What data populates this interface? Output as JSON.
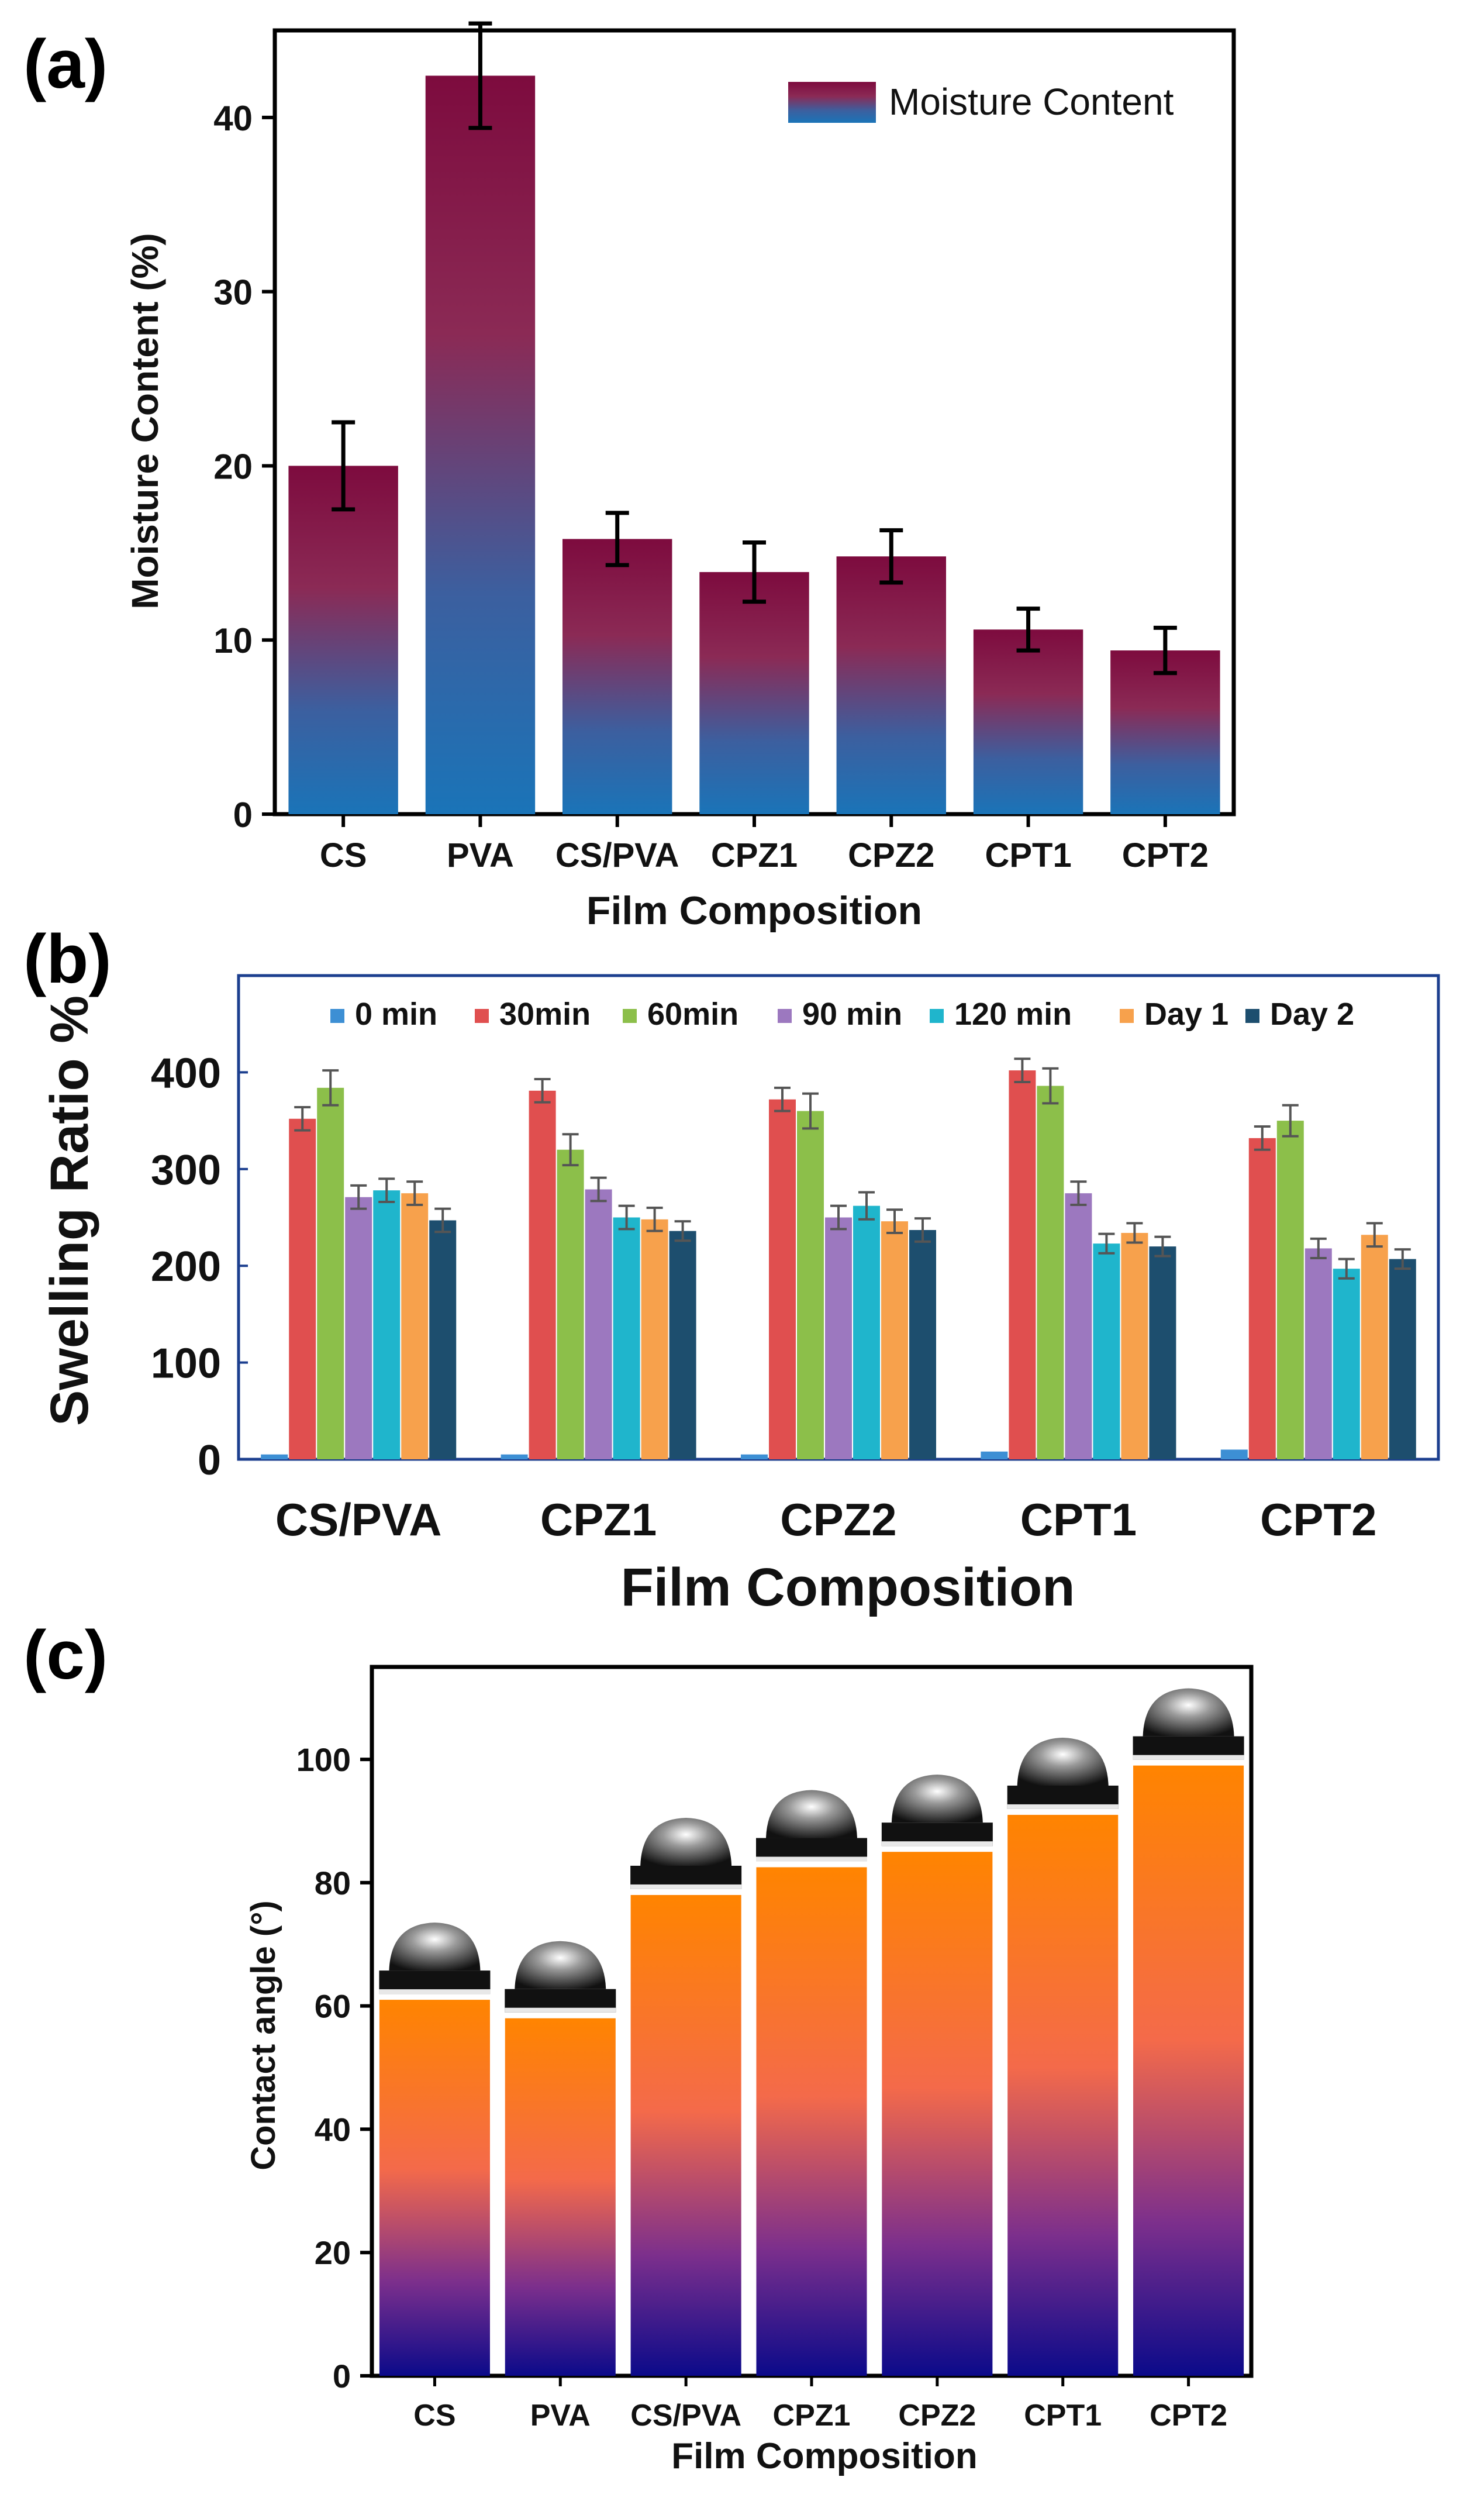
{
  "chart_data": [
    {
      "panel": "(a)",
      "type": "bar",
      "categories": [
        "CS",
        "PVA",
        "CS/PVA",
        "CPZ1",
        "CPZ2",
        "CPT1",
        "CPT2"
      ],
      "series": [
        {
          "name": "Moisture Content",
          "values": [
            20.0,
            42.4,
            15.8,
            13.9,
            14.8,
            10.6,
            9.4
          ],
          "errors": [
            2.5,
            3.0,
            1.5,
            1.7,
            1.5,
            1.2,
            1.3
          ]
        }
      ],
      "xlabel": "Film Composition",
      "ylabel": "Moisture Content (%)",
      "ylim": [
        0,
        45
      ],
      "yticks": [
        0,
        10,
        20,
        30,
        40
      ],
      "legend": "top-right",
      "grid": false,
      "colors": {
        "bar_top": "#7d0b3e",
        "bar_bottom": "#1a74b8"
      }
    },
    {
      "panel": "(b)",
      "type": "bar",
      "categories": [
        "CS/PVA",
        "CPZ1",
        "CPZ2",
        "CPT1",
        "CPT2"
      ],
      "series": [
        {
          "name": "0 min",
          "color": "#3d8fd4",
          "values": [
            5,
            5,
            5,
            8,
            10
          ],
          "errors": [
            0,
            0,
            0,
            0,
            0
          ]
        },
        {
          "name": "30min",
          "color": "#e04f4f",
          "values": [
            352,
            381,
            372,
            402,
            332
          ],
          "errors": [
            12,
            12,
            12,
            12,
            12
          ]
        },
        {
          "name": "60min",
          "color": "#8cbf4a",
          "values": [
            384,
            320,
            360,
            386,
            350
          ],
          "errors": [
            18,
            16,
            18,
            18,
            16
          ]
        },
        {
          "name": "90 min",
          "color": "#9c78bf",
          "values": [
            271,
            279,
            250,
            275,
            218
          ],
          "errors": [
            12,
            12,
            12,
            12,
            10
          ]
        },
        {
          "name": "120 min",
          "color": "#1fb5cc",
          "values": [
            278,
            250,
            262,
            223,
            197
          ],
          "errors": [
            12,
            12,
            14,
            10,
            10
          ]
        },
        {
          "name": "Day 1",
          "color": "#f7a14c",
          "values": [
            275,
            248,
            246,
            234,
            232
          ],
          "errors": [
            12,
            12,
            12,
            10,
            12
          ]
        },
        {
          "name": "Day 2",
          "color": "#1d4e6e",
          "values": [
            247,
            236,
            237,
            220,
            207
          ],
          "errors": [
            12,
            10,
            12,
            10,
            10
          ]
        }
      ],
      "xlabel": "Film Composition",
      "ylabel": "Swelling Ratio %",
      "ylim": [
        0,
        500
      ],
      "yticks": [
        0,
        100,
        200,
        300,
        400
      ],
      "legend": "top",
      "grid": false,
      "frame_color": "#1c3f8f"
    },
    {
      "panel": "(c)",
      "type": "bar",
      "categories": [
        "CS",
        "PVA",
        "CS/PVA",
        "CPZ1",
        "CPZ2",
        "CPT1",
        "CPT2"
      ],
      "series": [
        {
          "values": [
            61,
            58,
            78,
            82.5,
            85,
            91,
            99
          ]
        }
      ],
      "xlabel": "Film Composition",
      "ylabel": "Contact angle (°)",
      "ylim": [
        0,
        115
      ],
      "yticks": [
        0,
        20,
        40,
        60,
        80,
        100
      ],
      "grid": false,
      "colors": {
        "bar_top": "#ff8400",
        "bar_mid": "#f26a4a",
        "bar_bottom": "#0b0a8a"
      },
      "annotations": "droplet image above each bar"
    }
  ]
}
